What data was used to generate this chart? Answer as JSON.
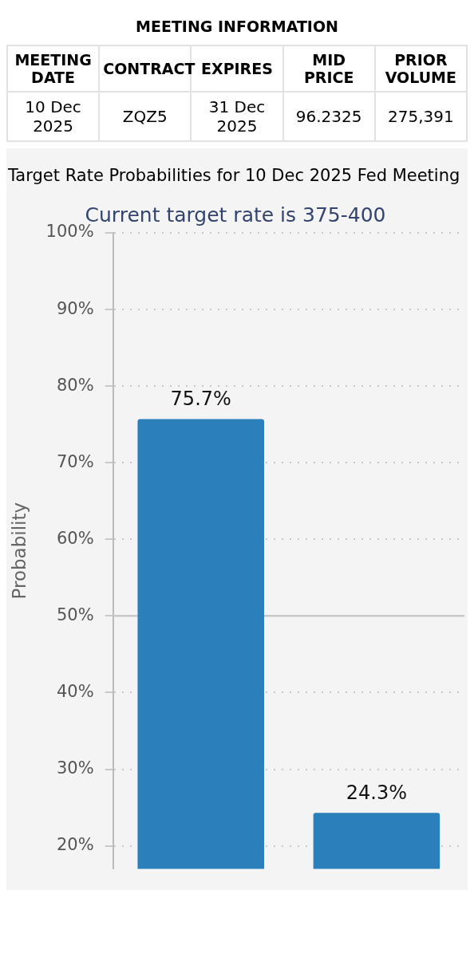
{
  "chart_data": [
    {
      "type": "other",
      "title": "MEETING INFORMATION",
      "categories": [
        "MEETING DATE",
        "CONTRACT",
        "EXPIRES",
        "MID PRICE",
        "PRIOR VOLUME"
      ],
      "cell_labels": [
        [
          "10 Dec 2025",
          "ZQZ5",
          "31 Dec 2025",
          "96.2325",
          "275,391"
        ]
      ]
    },
    {
      "type": "bar",
      "title": "Target Rate Probabilities for 10 Dec 2025 Fed Meeting",
      "subtitle": "Current target rate is 375-400",
      "ylabel": "Probability",
      "categories": [
        null,
        null
      ],
      "values": [
        75.7,
        24.3
      ],
      "color": "#2b7fba",
      "value_labels": [
        "75.7%",
        "24.3%"
      ],
      "ylim": [
        17,
        100
      ],
      "yticks": [
        {
          "value": 20,
          "label": "20%"
        },
        {
          "value": 30,
          "label": "30%"
        },
        {
          "value": 40,
          "label": "40%"
        },
        {
          "value": 50,
          "label": "50%"
        },
        {
          "value": 60,
          "label": "60%"
        },
        {
          "value": 70,
          "label": "70%"
        },
        {
          "value": 80,
          "label": "80%"
        },
        {
          "value": 90,
          "label": "90%"
        },
        {
          "value": 100,
          "label": "100%"
        }
      ],
      "grid": "y",
      "line_style": "dotted",
      "ref_lines": [
        {
          "axis": "y",
          "value": 50,
          "color": "#c8c8c8",
          "line_style": "solid"
        }
      ],
      "legend": false
    }
  ]
}
